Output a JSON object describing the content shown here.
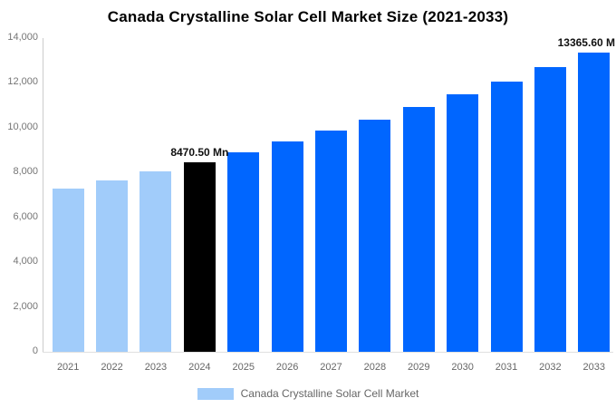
{
  "chart_data": {
    "type": "bar",
    "title": "Canada Crystalline Solar Cell Market Size (2021-2033)",
    "categories": [
      "2021",
      "2022",
      "2023",
      "2024",
      "2025",
      "2026",
      "2027",
      "2028",
      "2029",
      "2030",
      "2031",
      "2032",
      "2033"
    ],
    "series": [
      {
        "name": "Canada Crystalline Solar Cell Market",
        "values": [
          7275,
          7655,
          8050,
          8470.5,
          8910,
          9375,
          9860,
          10375,
          10915,
          11480,
          12075,
          12705,
          13365.6
        ],
        "colors": [
          "#A1CCFA",
          "#A1CCFA",
          "#A1CCFA",
          "#000000",
          "#0066FF",
          "#0066FF",
          "#0066FF",
          "#0066FF",
          "#0066FF",
          "#0066FF",
          "#0066FF",
          "#0066FF",
          "#0066FF"
        ]
      }
    ],
    "xlabel": "",
    "ylabel": "",
    "ylim": [
      0,
      14000
    ],
    "ytick_labels": [
      "0",
      "2,000",
      "4,000",
      "6,000",
      "8,000",
      "10,000",
      "12,000",
      "14,000"
    ],
    "ytick_values": [
      0,
      2000,
      4000,
      6000,
      8000,
      10000,
      12000,
      14000
    ],
    "grid": false,
    "annotations": [
      {
        "category": "2024",
        "text": "8470.50 Mn",
        "anchor": "center"
      },
      {
        "category": "2033",
        "text": "13365.60 M",
        "anchor": "right-clipped"
      }
    ],
    "legend": {
      "position": "bottom",
      "items": [
        {
          "label": "Canada Crystalline Solar Cell Market",
          "color": "#A1CCFA"
        }
      ]
    },
    "colors": {
      "historical_bar": "#A1CCFA",
      "base_year_bar": "#000000",
      "forecast_bar": "#0066FF",
      "axis_line": "#cccccc",
      "tick_text": "#757575"
    }
  }
}
